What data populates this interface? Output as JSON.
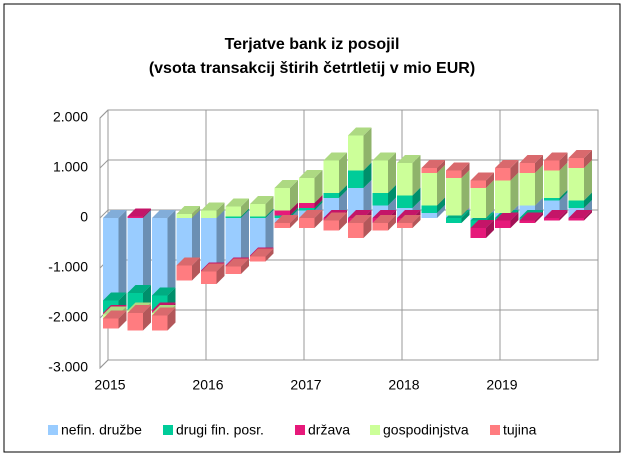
{
  "chart_data": {
    "type": "bar3d-stacked",
    "title": "Terjatve bank iz posojil",
    "subtitle": "(vsota transakcij štirih četrtletij  v mio EUR)",
    "categories": [
      "2015",
      null,
      null,
      null,
      "2016",
      null,
      null,
      null,
      "2017",
      null,
      null,
      null,
      "2018",
      null,
      null,
      null,
      "2019",
      null,
      null,
      null
    ],
    "series": [
      {
        "name": "nefin. družbe",
        "color": "#99ccff",
        "values": [
          -1650,
          -1500,
          -1550,
          -950,
          -1050,
          -950,
          -750,
          -100,
          150,
          400,
          600,
          250,
          200,
          100,
          50,
          -50,
          100,
          250,
          350,
          200
        ]
      },
      {
        "name": "drugi fin. posr.",
        "color": "#00cc99",
        "values": [
          -250,
          -350,
          -300,
          0,
          0,
          30,
          30,
          50,
          50,
          100,
          350,
          250,
          250,
          150,
          -100,
          -150,
          -50,
          -50,
          50,
          150
        ]
      },
      {
        "name": "država",
        "color": "#e6197a",
        "values": [
          -30,
          30,
          -50,
          0,
          -20,
          -20,
          -20,
          100,
          100,
          -50,
          -100,
          -100,
          -100,
          0,
          0,
          -200,
          -150,
          -50,
          -50,
          -50
        ]
      },
      {
        "name": "gospodinjstva",
        "color": "#ccff99",
        "values": [
          -80,
          -50,
          -50,
          80,
          150,
          200,
          250,
          450,
          500,
          650,
          700,
          650,
          650,
          650,
          750,
          600,
          650,
          650,
          550,
          650
        ]
      },
      {
        "name": "tujina",
        "color": "#ff7c80",
        "values": [
          -200,
          -350,
          -300,
          -300,
          -250,
          -150,
          -100,
          -100,
          -200,
          -200,
          -300,
          -150,
          -100,
          100,
          150,
          150,
          250,
          200,
          200,
          200
        ]
      }
    ],
    "ylim": [
      -3000,
      2000
    ],
    "yticks": [
      {
        "value": -3000,
        "label": "-3.000"
      },
      {
        "value": -2000,
        "label": "-2.000"
      },
      {
        "value": -1000,
        "label": "-1.000"
      },
      0,
      {
        "value": 1000,
        "label": "1.000"
      },
      {
        "value": 2000,
        "label": "2.000"
      }
    ],
    "grid": true,
    "legend": "bottom"
  }
}
